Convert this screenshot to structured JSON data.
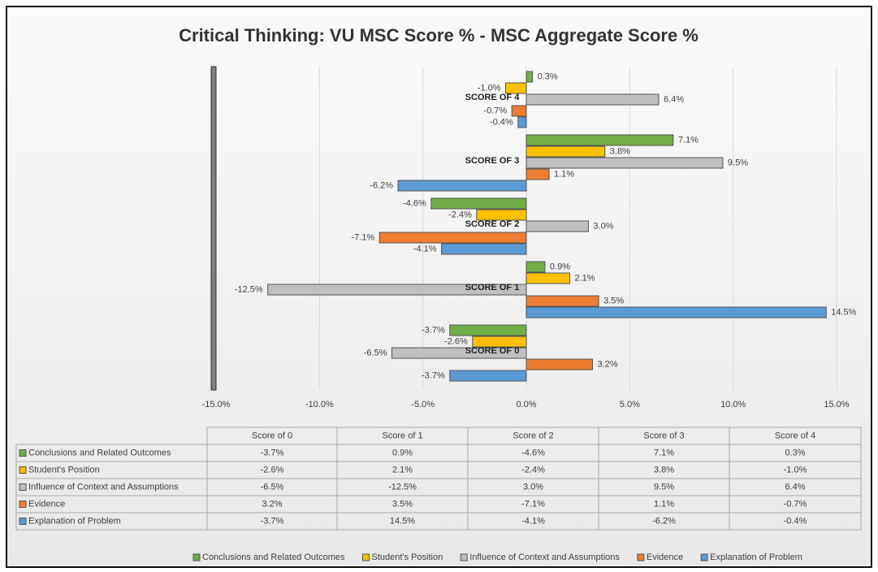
{
  "chart_data": {
    "type": "barh",
    "title": "Critical Thinking: VU MSC Score % - MSC Aggregate Score %",
    "categories": [
      "Score of 0",
      "Score of 1",
      "Score of 2",
      "Score of 3",
      "Score of 4"
    ],
    "category_labels": [
      "SCORE OF 0",
      "SCORE OF 1",
      "SCORE OF 2",
      "SCORE OF 3",
      "SCORE OF 4"
    ],
    "series": [
      {
        "name": "Conclusions and Related Outcomes",
        "color": "#70ad47",
        "values": [
          -3.7,
          0.9,
          -4.6,
          7.1,
          0.3
        ],
        "value_labels": [
          "-3.7%",
          "0.9%",
          "-4.6%",
          "7.1%",
          "0.3%"
        ]
      },
      {
        "name": "Student's Position",
        "color": "#ffc000",
        "values": [
          -2.6,
          2.1,
          -2.4,
          3.8,
          -1.0
        ],
        "value_labels": [
          "-2.6%",
          "2.1%",
          "-2.4%",
          "3.8%",
          "-1.0%"
        ]
      },
      {
        "name": "Influence of Context and Assumptions",
        "color": "#bfbfbf",
        "values": [
          -6.5,
          -12.5,
          3.0,
          9.5,
          6.4
        ],
        "value_labels": [
          "-6.5%",
          "-12.5%",
          "3.0%",
          "9.5%",
          "6.4%"
        ]
      },
      {
        "name": "Evidence",
        "color": "#ed7d31",
        "values": [
          3.2,
          3.5,
          -7.1,
          1.1,
          -0.7
        ],
        "value_labels": [
          "3.2%",
          "3.5%",
          "-7.1%",
          "1.1%",
          "-0.7%"
        ]
      },
      {
        "name": "Explanation of Problem",
        "color": "#5b9bd5",
        "values": [
          -3.7,
          14.5,
          -4.1,
          -6.2,
          -0.4
        ],
        "value_labels": [
          "-3.7%",
          "14.5%",
          "-4.1%",
          "-6.2%",
          "-0.4%"
        ]
      }
    ],
    "xlim": [
      -15,
      15
    ],
    "xticks": [
      {
        "value": -15,
        "label": "-15.0%"
      },
      {
        "value": -10,
        "label": "-10.0%"
      },
      {
        "value": -5,
        "label": "-5.0%"
      },
      {
        "value": 0,
        "label": "0.0%"
      },
      {
        "value": 5,
        "label": "5.0%"
      },
      {
        "value": 10,
        "label": "10.0%"
      },
      {
        "value": 15,
        "label": "15.0%"
      }
    ],
    "grid": true
  }
}
